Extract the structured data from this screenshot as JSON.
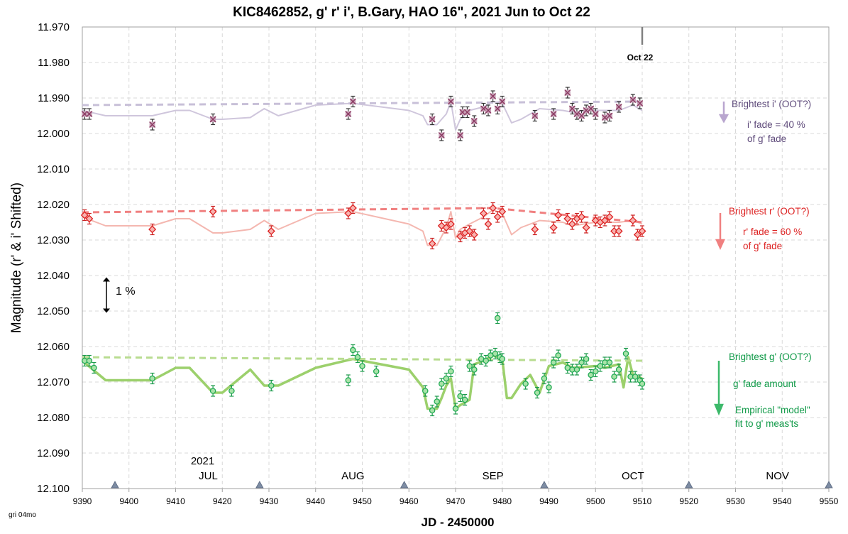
{
  "chart_data": {
    "type": "scatter",
    "title": "KIC8462852, g' r' i', B.Gary, HAO 16\", 2021 Jun to Oct 22",
    "xlabel": "JD - 2450000",
    "ylabel": "Magnitude  (r' & i' Shifted)",
    "xlim": [
      9390,
      9550
    ],
    "ylim": [
      11.97,
      12.1
    ],
    "y_inverted": true,
    "xticks": [
      "9390",
      "9400",
      "9410",
      "9420",
      "9430",
      "9440",
      "9450",
      "9460",
      "9470",
      "9480",
      "9490",
      "9500",
      "9510",
      "9520",
      "9530",
      "9540",
      "9550"
    ],
    "yticks": [
      "11.970",
      "11.980",
      "11.990",
      "12.000",
      "12.010",
      "12.020",
      "12.030",
      "12.040",
      "12.050",
      "12.060",
      "12.070",
      "12.080",
      "12.090",
      "12.100"
    ],
    "grid": "dashed",
    "year_label": "2021",
    "months": [
      {
        "label": "JUL",
        "x": 9417
      },
      {
        "label": "AUG",
        "x": 9448
      },
      {
        "label": "SEP",
        "x": 9478
      },
      {
        "label": "OCT",
        "x": 9508
      },
      {
        "label": "NOV",
        "x": 9539
      }
    ],
    "month_markers_x": [
      9397,
      9428,
      9459,
      9489,
      9520,
      9550
    ],
    "oct22_label": "Oct 22",
    "oct22_x": 9510,
    "scale_bar_label": "1 %",
    "footnote": "gri 04mo",
    "colors": {
      "i": "#8b3a62",
      "i_line": "#cfc6dc",
      "i_dash": "#c8c0d8",
      "i_arrow": "#b9a6cf",
      "i_text": "#5e4a7a",
      "r": "#dd2222",
      "r_line": "#f4b7b0",
      "r_dash": "#f08080",
      "r_text": "#dd2222",
      "g": "#22aa55",
      "g_line": "#9cd06c",
      "g_dash": "#b8dc90",
      "g_text": "#109a48"
    },
    "annotations": {
      "i_brightest": "Brightest i' (OOT?)",
      "i_fade1": "i' fade = 40 %",
      "i_fade2": "of g' fade",
      "r_brightest": "Brightest r' (OOT?)",
      "r_fade1": "r' fade = 60 %",
      "r_fade2": "of g' fade",
      "g_brightest": "Brightest g' (OOT?)",
      "g_fade": "g' fade amount",
      "g_model1": "Empirical \"model\"",
      "g_model2": "fit to g' meas'ts"
    },
    "series": [
      {
        "marker": "x-square",
        "color_key": "i",
        "x": [
          9390.5,
          9391.5,
          9405,
          9418,
          9447,
          9448,
          9465,
          9467,
          9469,
          9471,
          9471.5,
          9472.5,
          9474,
          9476,
          9477,
          9478,
          9479,
          9480,
          9487,
          9491,
          9494,
          9495,
          9496,
          9497,
          9498,
          9499,
          9500,
          9502,
          9503,
          9505,
          9508,
          9509.5
        ],
        "y": [
          11.9945,
          11.9945,
          11.9975,
          11.996,
          11.9945,
          11.991,
          11.996,
          12.0005,
          11.991,
          12.0005,
          11.994,
          11.994,
          11.9965,
          11.993,
          11.9935,
          11.9895,
          11.993,
          11.991,
          11.995,
          11.9945,
          11.9885,
          11.993,
          11.9945,
          11.995,
          11.9935,
          11.993,
          11.9945,
          11.9955,
          11.995,
          11.9925,
          11.9905,
          11.9915
        ],
        "err": 0.0015
      },
      {
        "marker": "diamond",
        "color_key": "r",
        "x": [
          9390.5,
          9391.5,
          9405,
          9418,
          9430.5,
          9447,
          9448,
          9465,
          9467,
          9468,
          9469,
          9471,
          9472,
          9473,
          9474,
          9476,
          9477,
          9478,
          9479,
          9480,
          9487,
          9491,
          9492,
          9494,
          9495,
          9496,
          9497,
          9498,
          9500,
          9501,
          9502,
          9503,
          9504,
          9505,
          9508,
          9509,
          9510
        ],
        "y": [
          12.023,
          12.024,
          12.027,
          12.022,
          12.0275,
          12.0225,
          12.021,
          12.031,
          12.026,
          12.0265,
          12.0255,
          12.029,
          12.028,
          12.0275,
          12.0285,
          12.0225,
          12.0255,
          12.021,
          12.0235,
          12.022,
          12.027,
          12.0265,
          12.023,
          12.024,
          12.0255,
          12.024,
          12.0235,
          12.0265,
          12.0245,
          12.025,
          12.0245,
          12.0235,
          12.0275,
          12.0275,
          12.0245,
          12.0285,
          12.0275
        ],
        "err": 0.0015
      },
      {
        "marker": "circle",
        "color_key": "g",
        "x": [
          9390.5,
          9391.5,
          9392.5,
          9405,
          9418,
          9422,
          9430.5,
          9447,
          9448,
          9449,
          9450,
          9453,
          9463.5,
          9465,
          9466,
          9467,
          9468,
          9469,
          9470,
          9471,
          9472,
          9473,
          9474,
          9475.5,
          9476.5,
          9477.5,
          9478.5,
          9479,
          9479.5,
          9480,
          9485,
          9487.5,
          9489,
          9490,
          9491,
          9492,
          9494,
          9495,
          9496,
          9497,
          9498,
          9499,
          9500,
          9501,
          9502,
          9503,
          9504,
          9505,
          9506.5,
          9507.5,
          9508.5,
          9509.5,
          9510
        ],
        "y": [
          12.064,
          12.064,
          12.066,
          12.069,
          12.0725,
          12.0725,
          12.071,
          12.0695,
          12.061,
          12.063,
          12.0655,
          12.067,
          12.0725,
          12.078,
          12.0755,
          12.0705,
          12.069,
          12.067,
          12.0775,
          12.074,
          12.075,
          12.0655,
          12.0665,
          12.0635,
          12.064,
          12.0625,
          12.062,
          12.052,
          12.063,
          12.0635,
          12.0705,
          12.073,
          12.069,
          12.0715,
          12.0645,
          12.0625,
          12.066,
          12.0665,
          12.0665,
          12.0645,
          12.0635,
          12.068,
          12.067,
          12.0655,
          12.0645,
          12.0645,
          12.0685,
          12.0665,
          12.062,
          12.0685,
          12.0685,
          12.0695,
          12.0705
        ],
        "err": 0.0015
      }
    ],
    "model_lines": [
      {
        "color_key": "i_line",
        "x": [
          9390,
          9395,
          9405,
          9410,
          9413,
          9418,
          9420,
          9426,
          9429,
          9432,
          9440,
          9448,
          9460,
          9463,
          9464,
          9466,
          9468,
          9469,
          9470,
          9471,
          9473,
          9476,
          9478,
          9480,
          9482,
          9484,
          9488,
          9493,
          9495,
          9500,
          9505,
          9508,
          9510
        ],
        "y": [
          11.9935,
          11.995,
          11.995,
          11.9935,
          11.9935,
          11.996,
          11.996,
          11.9955,
          11.993,
          11.995,
          11.992,
          11.9915,
          11.9935,
          11.995,
          11.9975,
          11.9975,
          11.9945,
          11.991,
          11.999,
          11.996,
          11.9935,
          11.9925,
          11.991,
          11.9915,
          11.997,
          11.996,
          11.993,
          11.9935,
          11.994,
          11.9935,
          11.9935,
          11.992,
          11.9935
        ]
      },
      {
        "color_key": "r_line",
        "x": [
          9390,
          9395,
          9405,
          9410,
          9413,
          9418,
          9420,
          9426,
          9429,
          9432,
          9440,
          9448,
          9460,
          9463,
          9464,
          9466,
          9468,
          9469,
          9470,
          9471,
          9473,
          9476,
          9478,
          9480,
          9482,
          9484,
          9488,
          9493,
          9495,
          9500,
          9505,
          9508,
          9510
        ],
        "y": [
          12.0235,
          12.026,
          12.026,
          12.024,
          12.024,
          12.028,
          12.028,
          12.027,
          12.0245,
          12.027,
          12.0225,
          12.022,
          12.0255,
          12.0275,
          12.0315,
          12.0315,
          12.0265,
          12.022,
          12.0295,
          12.027,
          12.0255,
          12.0235,
          12.0215,
          12.0225,
          12.0285,
          12.0265,
          12.0245,
          12.025,
          12.026,
          12.025,
          12.025,
          12.0245,
          12.0255
        ]
      },
      {
        "color_key": "g_line",
        "x": [
          9390,
          9395,
          9405,
          9410,
          9413,
          9418,
          9420,
          9426,
          9429,
          9432,
          9440,
          9448,
          9460,
          9463,
          9464,
          9466,
          9467,
          9468,
          9469,
          9470,
          9471,
          9473,
          9474,
          9476,
          9478,
          9480,
          9481,
          9482,
          9484,
          9486,
          9488,
          9490,
          9493,
          9495,
          9500,
          9502,
          9505,
          9506,
          9507,
          9508,
          9510
        ],
        "y": [
          12.064,
          12.0695,
          12.0695,
          12.066,
          12.066,
          12.073,
          12.073,
          12.0665,
          12.071,
          12.071,
          12.066,
          12.0635,
          12.0665,
          12.0715,
          12.0775,
          12.0775,
          12.0745,
          12.071,
          12.069,
          12.0775,
          12.0765,
          12.075,
          12.065,
          12.064,
          12.0625,
          12.0635,
          12.0745,
          12.0745,
          12.0705,
          12.068,
          12.073,
          12.0655,
          12.0645,
          12.066,
          12.0655,
          12.066,
          12.065,
          12.0715,
          12.063,
          12.068,
          12.069
        ]
      }
    ],
    "dashed_lines": [
      {
        "color_key": "i_dash",
        "x": [
          9390,
          9510
        ],
        "y": [
          11.992,
          11.991
        ]
      },
      {
        "color_key": "r_dash",
        "x": [
          9390,
          9478,
          9510
        ],
        "y": [
          12.0222,
          12.021,
          12.025
        ]
      },
      {
        "color_key": "g_dash",
        "x": [
          9390,
          9510
        ],
        "y": [
          12.063,
          12.064
        ]
      }
    ]
  }
}
